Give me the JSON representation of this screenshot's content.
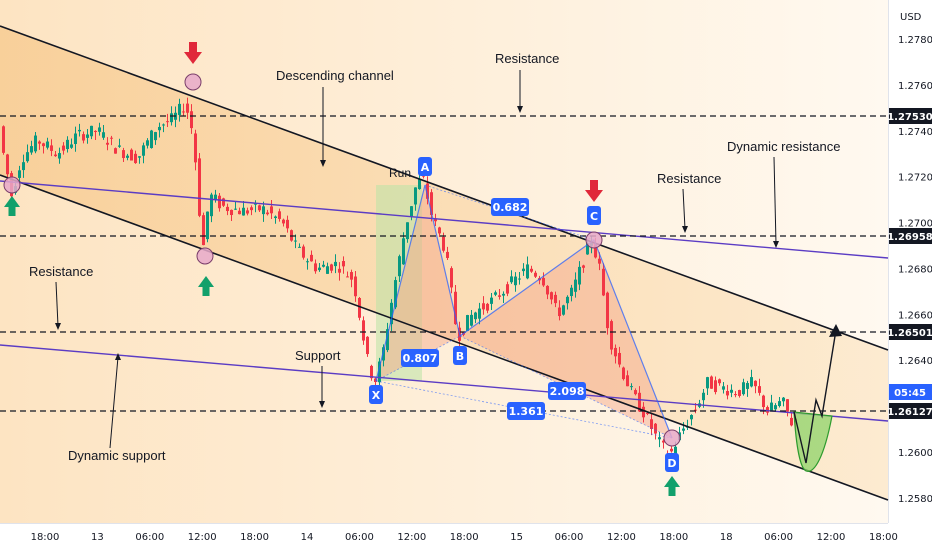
{
  "chart_data": {
    "type": "candlestick",
    "symbol_currency": "USD",
    "ylim": [
      1.2569,
      1.2797
    ],
    "x_ticks": [
      "18:00",
      "13",
      "06:00",
      "12:00",
      "18:00",
      "14",
      "06:00",
      "12:00",
      "18:00",
      "15",
      "06:00",
      "12:00",
      "18:00",
      "18",
      "06:00",
      "12:00",
      "18:00"
    ],
    "y_ticks": [
      "1.27800",
      "1.27600",
      "1.27400",
      "1.27200",
      "1.27000",
      "1.26800",
      "1.26600",
      "1.26400",
      "1.26000",
      "1.25800"
    ],
    "price_tags": [
      {
        "value": "1.27530",
        "style": "dark"
      },
      {
        "value": "1.26958",
        "style": "dark"
      },
      {
        "value": "1.26501",
        "style": "dark"
      },
      {
        "value": "05:45",
        "style": "blue"
      },
      {
        "value": "1.26127",
        "style": "dark"
      }
    ],
    "horizontal_levels": [
      1.2753,
      1.26958,
      1.26501,
      1.26127
    ],
    "harmonic_pattern": {
      "points": [
        {
          "label": "X",
          "price": 1.263
        },
        {
          "label": "A",
          "price": 1.2722
        },
        {
          "label": "B",
          "price": 1.2648
        },
        {
          "label": "C",
          "price": 1.2696
        },
        {
          "label": "D",
          "price": 1.2598
        }
      ],
      "ratios": [
        "0.682",
        "0.807",
        "2.098",
        "1.361"
      ]
    },
    "annotations": [
      "Descending channel",
      "Resistance",
      "Resistance",
      "Dynamic resistance",
      "Resistance",
      "Support",
      "Dynamic support",
      "Run"
    ],
    "current_price": 1.26127,
    "colors": {
      "up": "#089981",
      "down": "#f23645",
      "pattern": "#2962ff",
      "dynamic": "#5b3cc4",
      "projection": "#2e9b2e"
    }
  }
}
